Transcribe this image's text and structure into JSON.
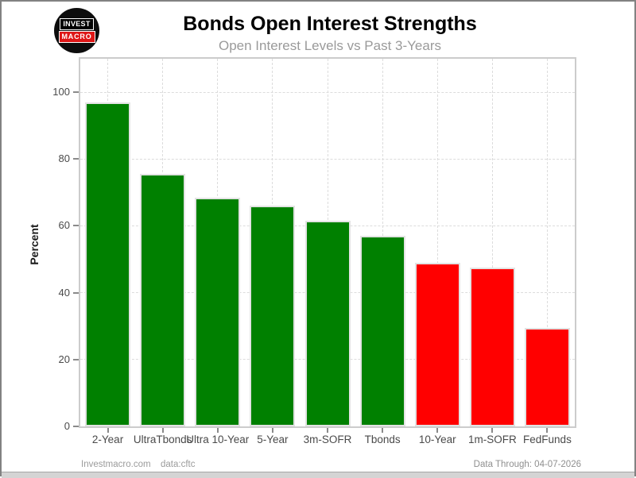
{
  "header": {
    "logo": {
      "line1": "INVEST",
      "line2": "MACRO"
    }
  },
  "chart_data": {
    "type": "bar",
    "title": "Bonds Open Interest Strengths",
    "subtitle": "Open Interest Levels vs Past 3-Years",
    "xlabel": "",
    "ylabel": "Percent",
    "categories": [
      "2-Year",
      "UltraTbonds",
      "Ultra 10-Year",
      "5-Year",
      "3m-SOFR",
      "Tbonds",
      "10-Year",
      "1m-SOFR",
      "FedFunds"
    ],
    "values": [
      97,
      75.5,
      68.5,
      66,
      61.5,
      57,
      49,
      47.5,
      29.5
    ],
    "bar_colors": [
      "#008000",
      "#008000",
      "#008000",
      "#008000",
      "#008000",
      "#008000",
      "#ff0000",
      "#ff0000",
      "#ff0000"
    ],
    "yticks": [
      0,
      20,
      40,
      60,
      80,
      100
    ],
    "ylim": [
      0,
      110
    ],
    "grid": "dashed horizontal and vertical major gridlines",
    "legend": "none",
    "colors": {
      "strong": "#008000",
      "weak": "#ff0000"
    }
  },
  "footer": {
    "left_text": "Investmacro.com",
    "source_text": "data:cftc",
    "right_text": "Data Through: 04-07-2026"
  }
}
